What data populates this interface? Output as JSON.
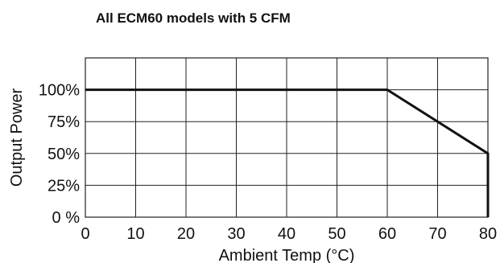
{
  "chart_data": {
    "type": "line",
    "title": "All ECM60 models with 5 CFM",
    "xlabel": "Ambient Temp (°C)",
    "ylabel": "Output Power",
    "xlim": [
      0,
      80
    ],
    "ylim": [
      0,
      125
    ],
    "x_ticks": [
      {
        "value": 0,
        "label": "0"
      },
      {
        "value": 10,
        "label": "10"
      },
      {
        "value": 20,
        "label": "20"
      },
      {
        "value": 30,
        "label": "30"
      },
      {
        "value": 40,
        "label": "40"
      },
      {
        "value": 50,
        "label": "50"
      },
      {
        "value": 60,
        "label": "60"
      },
      {
        "value": 70,
        "label": "70"
      },
      {
        "value": 80,
        "label": "80"
      }
    ],
    "y_ticks": [
      {
        "value": 0,
        "label": "0 %"
      },
      {
        "value": 25,
        "label": "25%"
      },
      {
        "value": 50,
        "label": "50%"
      },
      {
        "value": 75,
        "label": "75%"
      },
      {
        "value": 100,
        "label": "100%"
      }
    ],
    "grid": true,
    "series": [
      {
        "x": [
          0,
          60,
          80,
          80
        ],
        "y": [
          100,
          100,
          50,
          0
        ]
      }
    ],
    "colors": {
      "line": "#111111",
      "grid": "#222222",
      "background": "#ffffff"
    }
  }
}
